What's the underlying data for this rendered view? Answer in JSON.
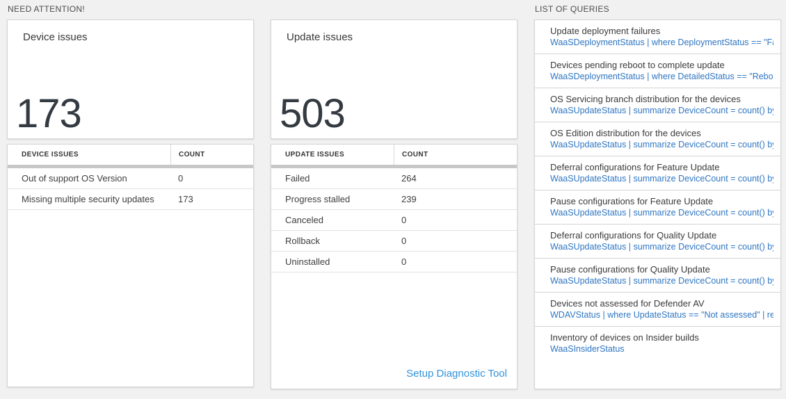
{
  "sections": {
    "need_attention_label": "NEED ATTENTION!",
    "list_of_queries_label": "LIST OF QUERIES"
  },
  "device_issues": {
    "tile_title": "Device issues",
    "tile_value": "173",
    "table": {
      "col_issue_header": "DEVICE ISSUES",
      "col_count_header": "COUNT",
      "rows": [
        {
          "label": "Out of support OS Version",
          "count": "0"
        },
        {
          "label": "Missing multiple security updates",
          "count": "173"
        }
      ]
    }
  },
  "update_issues": {
    "tile_title": "Update issues",
    "tile_value": "503",
    "table": {
      "col_issue_header": "UPDATE ISSUES",
      "col_count_header": "COUNT",
      "rows": [
        {
          "label": "Failed",
          "count": "264"
        },
        {
          "label": "Progress stalled",
          "count": "239"
        },
        {
          "label": "Canceled",
          "count": "0"
        },
        {
          "label": "Rollback",
          "count": "0"
        },
        {
          "label": "Uninstalled",
          "count": "0"
        }
      ]
    },
    "footer_link_label": "Setup Diagnostic Tool"
  },
  "queries": {
    "items": [
      {
        "title": "Update deployment failures",
        "query": "WaaSDeploymentStatus | where DeploymentStatus == \"Failed\" |..."
      },
      {
        "title": "Devices pending reboot to complete update",
        "query": "WaaSDeploymentStatus | where DetailedStatus == \"Reboot pend..."
      },
      {
        "title": "OS Servicing branch distribution for the devices",
        "query": "WaaSUpdateStatus | summarize DeviceCount = count() by OSSer..."
      },
      {
        "title": "OS Edition distribution for the devices",
        "query": "WaaSUpdateStatus | summarize DeviceCount = count() by OSEdit..."
      },
      {
        "title": "Deferral configurations for Feature Update",
        "query": "WaaSUpdateStatus | summarize DeviceCount = count() by Featur..."
      },
      {
        "title": "Pause configurations for Feature Update",
        "query": "WaaSUpdateStatus | summarize DeviceCount = count() by Featur..."
      },
      {
        "title": "Deferral configurations for Quality Update",
        "query": "WaaSUpdateStatus | summarize DeviceCount = count() by Qualit..."
      },
      {
        "title": "Pause configurations for Quality Update",
        "query": "WaaSUpdateStatus | summarize DeviceCount = count() by Qualit..."
      },
      {
        "title": "Devices not assessed for Defender AV",
        "query": "WDAVStatus | where UpdateStatus == \"Not assessed\" | render ta..."
      },
      {
        "title": "Inventory of devices on Insider builds",
        "query": "WaaSInsiderStatus"
      }
    ]
  },
  "colors": {
    "page_background": "#f1f1f1",
    "card_background": "#ffffff",
    "accent_number": "#333a41",
    "query_link_blue": "#2f76c2",
    "footer_link_blue": "#3093dc",
    "table_header_bar": "#c7c7c7"
  }
}
